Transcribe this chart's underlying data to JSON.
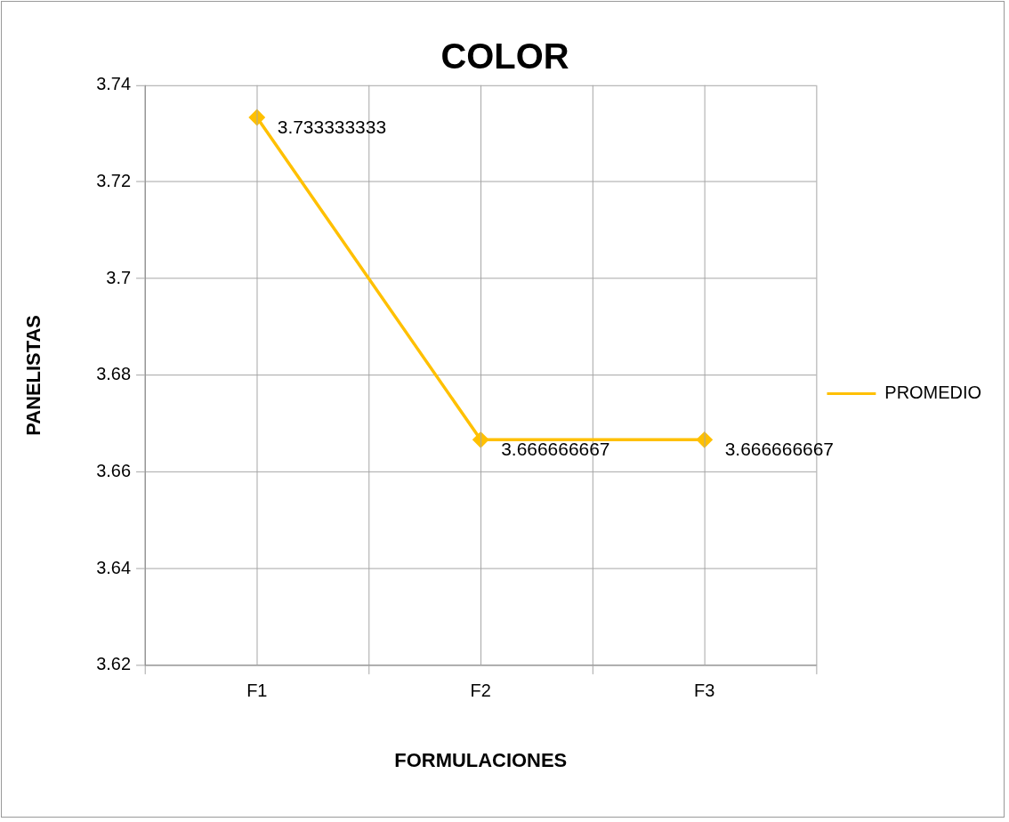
{
  "chart_data": {
    "type": "line",
    "title": "COLOR",
    "xlabel": "FORMULACIONES",
    "ylabel": "PANELISTAS",
    "categories": [
      "F1",
      "F2",
      "F3"
    ],
    "series": [
      {
        "name": "PROMEDIO",
        "color": "#ffc000",
        "values": [
          3.733333333,
          3.666666667,
          3.666666667
        ]
      }
    ],
    "ylim": [
      3.62,
      3.74
    ],
    "yticks": [
      3.62,
      3.64,
      3.66,
      3.68,
      3.7,
      3.72,
      3.74
    ],
    "grid": true,
    "legend": "right",
    "marker": "diamond",
    "data_labels": true
  }
}
